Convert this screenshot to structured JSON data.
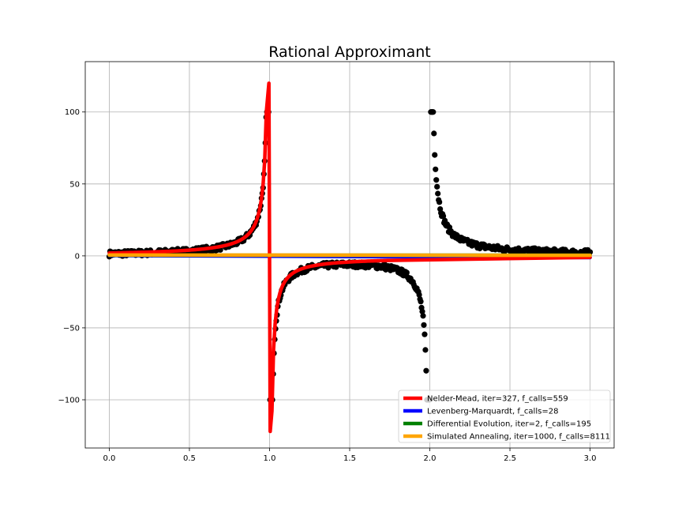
{
  "chart_data": {
    "type": "scatter",
    "title": "Rational Approximant",
    "xlabel": "",
    "ylabel": "",
    "xlim": [
      -0.15,
      3.15
    ],
    "ylim": [
      -133.5,
      135
    ],
    "x_ticks": [
      0.0,
      0.5,
      1.0,
      1.5,
      2.0,
      2.5,
      3.0
    ],
    "x_tick_labels": [
      "0.0",
      "0.5",
      "1.0",
      "1.5",
      "2.0",
      "2.5",
      "3.0"
    ],
    "y_ticks": [
      -100,
      -50,
      0,
      50,
      100
    ],
    "y_tick_labels": [
      "−100",
      "−50",
      "0",
      "50",
      "100"
    ],
    "grid": true,
    "legend_position": "lower-right",
    "data_points": {
      "color": "#000000",
      "x_range": [
        0,
        3
      ],
      "poles": [
        1.0,
        2.0
      ],
      "clip": [
        -100,
        100
      ]
    },
    "series": [
      {
        "name": "Nelder-Mead, iter=327, f_calls=559",
        "color": "#ff0000",
        "model": "pole_fit",
        "pole": 1.0,
        "peak": [
          120,
          -122
        ]
      },
      {
        "name": "Levenberg-Marquardt, f_calls=28",
        "color": "#0000ff",
        "model": "linear",
        "y_start": 0.3,
        "y_end": -1.2
      },
      {
        "name": "Differential Evolution, iter=2, f_calls=195",
        "color": "#008000",
        "model": "linear",
        "y_start": 0.5,
        "y_end": 0.5
      },
      {
        "name": "Simulated Annealing, iter=1000, f_calls=8111",
        "color": "#ffa500",
        "model": "linear",
        "y_start": 0.6,
        "y_end": 0.4
      }
    ]
  }
}
